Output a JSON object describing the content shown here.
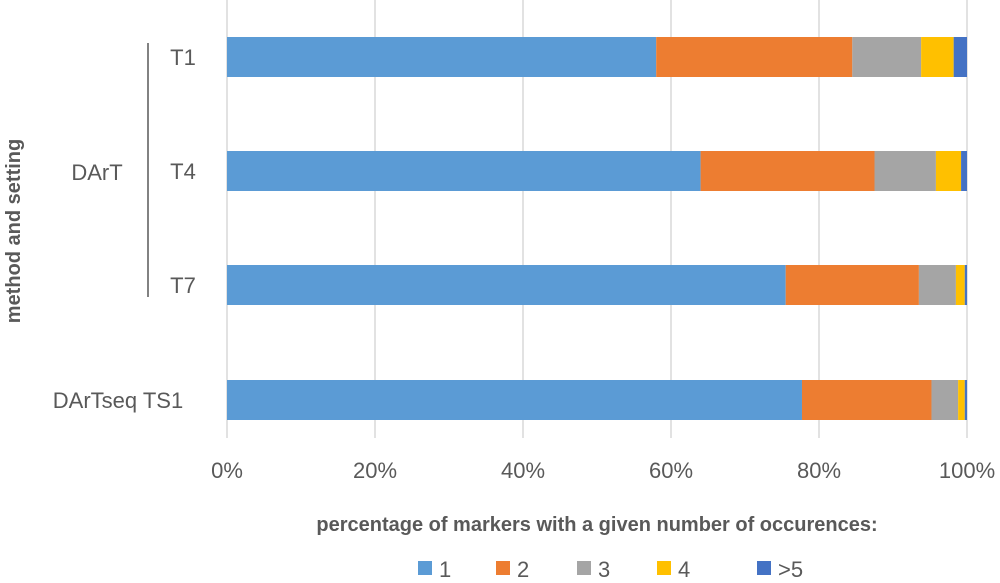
{
  "chart_data": {
    "type": "bar",
    "orientation": "horizontal",
    "stacked": "percent",
    "ylabel": "method and setting",
    "xlabel": "percentage of markers with a given number of occurences:",
    "xlim": [
      0,
      100
    ],
    "xticks": [
      "0%",
      "20%",
      "40%",
      "60%",
      "80%",
      "100%"
    ],
    "grid": true,
    "legend_position": "bottom",
    "groups": [
      {
        "label": "DArT",
        "categories": [
          "T1",
          "T4",
          "T7"
        ]
      },
      {
        "label": "",
        "categories": [
          "DArTseq TS1"
        ]
      }
    ],
    "categories": [
      "T1",
      "T4",
      "T7",
      "DArTseq TS1"
    ],
    "series": [
      {
        "name": "1",
        "color": "#5B9BD5",
        "values": [
          58,
          64,
          75.5,
          77.7
        ]
      },
      {
        "name": "2",
        "color": "#ED7D31",
        "values": [
          26.5,
          23.5,
          18,
          17.5
        ]
      },
      {
        "name": "3",
        "color": "#A5A5A5",
        "values": [
          9.3,
          8.3,
          5,
          3.6
        ]
      },
      {
        "name": "4",
        "color": "#FFC000",
        "values": [
          4.4,
          3.4,
          1.2,
          0.9
        ]
      },
      {
        "name": ">5",
        "color": "#4472C4",
        "values": [
          1.8,
          0.8,
          0.3,
          0.3
        ]
      }
    ]
  }
}
